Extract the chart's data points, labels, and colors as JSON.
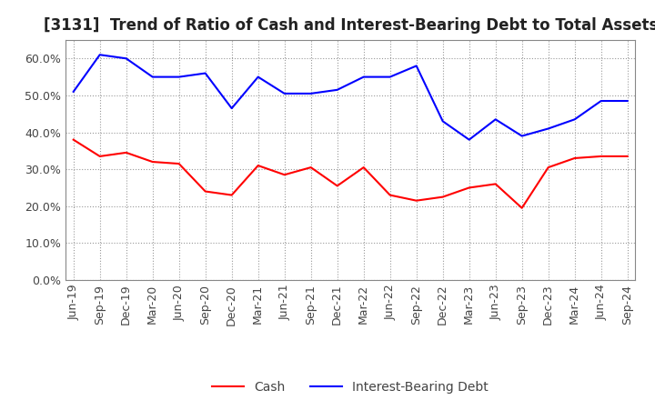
{
  "title": "[3131]  Trend of Ratio of Cash and Interest-Bearing Debt to Total Assets",
  "labels": [
    "Jun-19",
    "Sep-19",
    "Dec-19",
    "Mar-20",
    "Jun-20",
    "Sep-20",
    "Dec-20",
    "Mar-21",
    "Jun-21",
    "Sep-21",
    "Dec-21",
    "Mar-22",
    "Jun-22",
    "Sep-22",
    "Dec-22",
    "Mar-23",
    "Jun-23",
    "Sep-23",
    "Dec-23",
    "Mar-24",
    "Jun-24",
    "Sep-24"
  ],
  "cash": [
    38.0,
    33.5,
    34.5,
    32.0,
    31.5,
    24.0,
    23.0,
    31.0,
    28.5,
    30.5,
    25.5,
    30.5,
    23.0,
    21.5,
    22.5,
    25.0,
    26.0,
    19.5,
    30.5,
    33.0,
    33.5,
    33.5
  ],
  "ibd": [
    51.0,
    61.0,
    60.0,
    55.0,
    55.0,
    56.0,
    46.5,
    55.0,
    50.5,
    50.5,
    51.5,
    55.0,
    55.0,
    58.0,
    43.0,
    38.0,
    43.5,
    39.0,
    41.0,
    43.5,
    48.5,
    48.5
  ],
  "cash_color": "#ff0000",
  "ibd_color": "#0000ff",
  "ylim": [
    0,
    65
  ],
  "yticks": [
    0,
    10,
    20,
    30,
    40,
    50,
    60
  ],
  "background": "#ffffff",
  "grid_color": "#999999",
  "title_fontsize": 12,
  "tick_fontsize": 9,
  "legend_cash": "Cash",
  "legend_ibd": "Interest-Bearing Debt"
}
